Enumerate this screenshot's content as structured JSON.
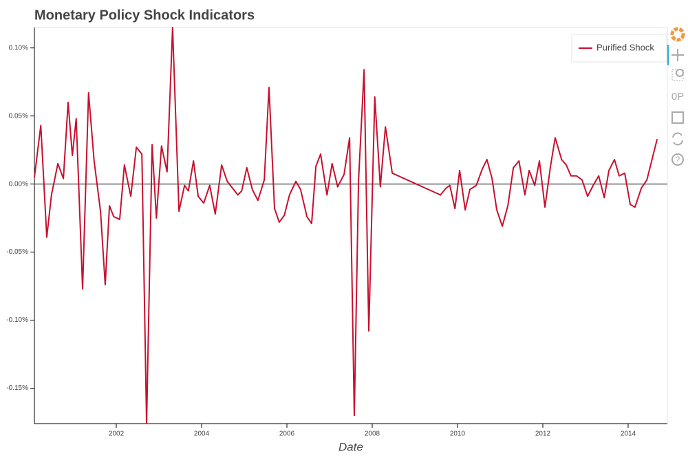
{
  "chart_data": {
    "type": "line",
    "title": "Monetary Policy Shock Indicators",
    "x_label": "Date",
    "x": [
      2000.08,
      2000.23,
      2000.37,
      2000.48,
      2000.63,
      2000.76,
      2000.87,
      2000.97,
      2001.06,
      2001.21,
      2001.35,
      2001.48,
      2001.63,
      2001.74,
      2001.84,
      2001.94,
      2002.08,
      2002.19,
      2002.34,
      2002.47,
      2002.6,
      2002.71,
      2002.84,
      2002.94,
      2003.06,
      2003.19,
      2003.32,
      2003.47,
      2003.6,
      2003.69,
      2003.81,
      2003.92,
      2004.05,
      2004.19,
      2004.32,
      2004.47,
      2004.6,
      2004.85,
      2004.94,
      2005.06,
      2005.19,
      2005.32,
      2005.47,
      2005.58,
      2005.71,
      2005.82,
      2005.94,
      2006.06,
      2006.21,
      2006.32,
      2006.47,
      2006.58,
      2006.68,
      2006.79,
      2006.94,
      2007.06,
      2007.19,
      2007.34,
      2007.47,
      2007.58,
      2007.68,
      2007.81,
      2007.92,
      2008.06,
      2008.19,
      2008.31,
      2008.47,
      2009.6,
      2009.73,
      2009.82,
      2009.94,
      2010.05,
      2010.18,
      2010.29,
      2010.44,
      2010.58,
      2010.69,
      2010.81,
      2010.92,
      2011.05,
      2011.18,
      2011.31,
      2011.44,
      2011.58,
      2011.68,
      2011.81,
      2011.92,
      2012.05,
      2012.18,
      2012.29,
      2012.44,
      2012.55,
      2012.66,
      2012.79,
      2012.92,
      2013.05,
      2013.18,
      2013.31,
      2013.44,
      2013.55,
      2013.68,
      2013.79,
      2013.92,
      2014.05,
      2014.16,
      2014.31,
      2014.44,
      2014.68
    ],
    "series": [
      {
        "name": "Purified Shock",
        "color": "#c8102e",
        "values": [
          0.005,
          0.043,
          -0.039,
          -0.008,
          0.015,
          0.004,
          0.06,
          0.021,
          0.048,
          -0.077,
          0.067,
          0.017,
          -0.02,
          -0.074,
          -0.016,
          -0.024,
          -0.026,
          0.014,
          -0.009,
          0.027,
          0.022,
          -0.176,
          0.029,
          -0.025,
          0.028,
          0.009,
          0.115,
          -0.02,
          -0.001,
          -0.005,
          0.017,
          -0.009,
          -0.014,
          -0.001,
          -0.022,
          0.014,
          0.002,
          -0.008,
          -0.005,
          0.012,
          -0.004,
          -0.012,
          0.003,
          0.071,
          -0.018,
          -0.028,
          -0.023,
          -0.008,
          0.002,
          -0.004,
          -0.024,
          -0.029,
          0.013,
          0.022,
          -0.008,
          0.015,
          -0.002,
          0.007,
          0.034,
          -0.17,
          0.003,
          0.084,
          -0.108,
          0.064,
          -0.002,
          0.042,
          0.008,
          -0.008,
          -0.003,
          -0.001,
          -0.018,
          0.01,
          -0.019,
          -0.004,
          -0.001,
          0.011,
          0.018,
          0.004,
          -0.019,
          -0.031,
          -0.016,
          0.012,
          0.017,
          -0.008,
          0.01,
          -0.001,
          0.017,
          -0.017,
          0.013,
          0.034,
          0.018,
          0.014,
          0.006,
          0.006,
          0.003,
          -0.009,
          -0.001,
          0.006,
          -0.01,
          0.01,
          0.018,
          0.006,
          0.008,
          -0.015,
          -0.017,
          -0.003,
          0.003,
          0.033
        ]
      }
    ],
    "reference_line": 0,
    "xlim": [
      2000.08,
      2014.92
    ],
    "xticks": [
      2002,
      2004,
      2006,
      2008,
      2010,
      2012,
      2014
    ],
    "ylim": [
      -0.176,
      0.115
    ],
    "yticks": [
      {
        "value": -0.15,
        "label": "-0.15%"
      },
      {
        "value": -0.1,
        "label": "-0.10%"
      },
      {
        "value": -0.05,
        "label": "-0.05%"
      },
      {
        "value": 0,
        "label": "0.00%"
      },
      {
        "value": 0.05,
        "label": "0.05%"
      },
      {
        "value": 0.1,
        "label": "0.10%"
      }
    ],
    "legend": "top-right"
  }
}
